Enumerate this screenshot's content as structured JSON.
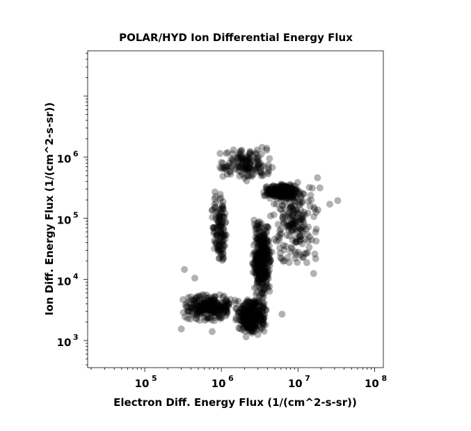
{
  "chart_data": {
    "type": "scatter",
    "title": "POLAR/HYD  Ion Differential Energy Flux",
    "xlabel": "Electron Diff. Energy Flux (1/(cm^2-s-sr))",
    "ylabel": "Ion Diff. Energy Flux (1/(cm^2-s-sr))",
    "x_scale": "log",
    "y_scale": "log",
    "xlim": [
      18000,
      130000000
    ],
    "ylim": [
      360,
      55000000
    ],
    "x_ticks": [
      {
        "base": "10",
        "exp": "5",
        "value": 100000
      },
      {
        "base": "10",
        "exp": "6",
        "value": 1000000
      },
      {
        "base": "10",
        "exp": "7",
        "value": 10000000
      },
      {
        "base": "10",
        "exp": "8",
        "value": 100000000
      }
    ],
    "y_ticks": [
      {
        "base": "10",
        "exp": "3",
        "value": 1000
      },
      {
        "base": "10",
        "exp": "4",
        "value": 10000
      },
      {
        "base": "10",
        "exp": "5",
        "value": 100000
      },
      {
        "base": "10",
        "exp": "6",
        "value": 1000000
      }
    ],
    "marker_color": "#000000",
    "marker_opacity": 0.3,
    "grid": false,
    "legend": "none",
    "clusters": [
      {
        "desc": "low-flux block",
        "x_range": [
          300000,
          1600000
        ],
        "y_range": [
          2000,
          6000
        ],
        "count": 260
      },
      {
        "desc": "low-flux dense core",
        "x_range": [
          1500000,
          4000000
        ],
        "y_range": [
          1300,
          5000
        ],
        "count": 320
      },
      {
        "desc": "vertical ridge",
        "x_range": [
          2500000,
          4500000
        ],
        "y_range": [
          4000,
          100000
        ],
        "count": 360
      },
      {
        "desc": "upper dense knot",
        "x_range": [
          3500000,
          11000000
        ],
        "y_range": [
          200000,
          380000
        ],
        "count": 220
      },
      {
        "desc": "left vertical arm",
        "x_range": [
          750000,
          1200000
        ],
        "y_range": [
          15000,
          300000
        ],
        "count": 130
      },
      {
        "desc": "top arc",
        "x_range": [
          900000,
          5000000
        ],
        "y_range": [
          400000,
          1500000
        ],
        "count": 150
      },
      {
        "desc": "right scatter",
        "x_range": [
          4000000,
          20000000
        ],
        "y_range": [
          15000,
          500000
        ],
        "count": 200
      }
    ],
    "sample_points": [
      [
        300000,
        1550
      ],
      [
        330000,
        14500
      ],
      [
        760000,
        1400
      ],
      [
        3400000,
        1450000
      ],
      [
        3900000,
        1400000
      ],
      [
        16000000,
        12500
      ],
      [
        33000000,
        195000
      ],
      [
        26000000,
        170000
      ],
      [
        2100000,
        1150
      ],
      [
        3000000,
        1250
      ],
      [
        11000000,
        230000
      ],
      [
        18000000,
        460000
      ],
      [
        450000,
        10500
      ],
      [
        1000000,
        820000
      ],
      [
        6200000,
        2700
      ]
    ]
  }
}
